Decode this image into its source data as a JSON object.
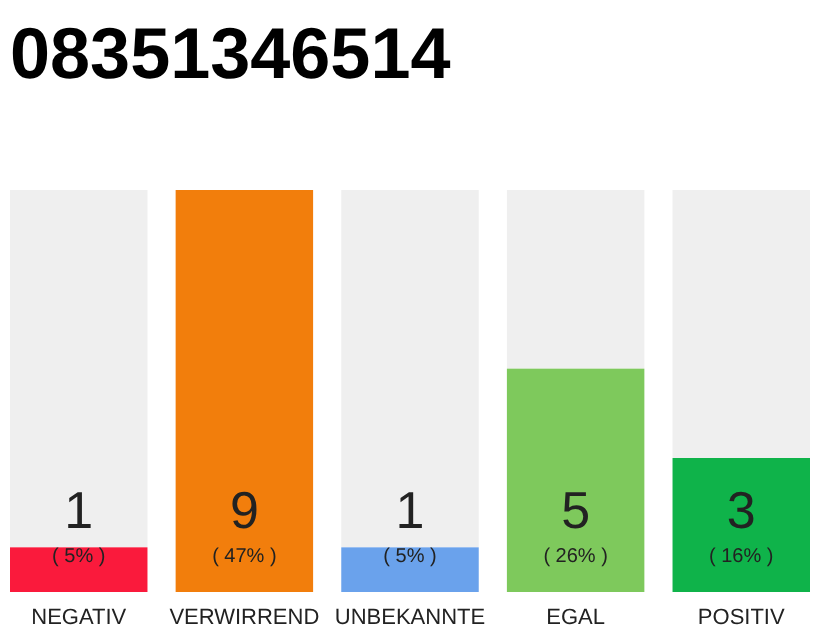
{
  "chart_data": {
    "type": "bar",
    "title": "08351346514",
    "categories": [
      "NEGATIV",
      "VERWIRREND",
      "UNBEKANNTE",
      "EGAL",
      "POSITIV"
    ],
    "values": [
      1,
      9,
      1,
      5,
      3
    ],
    "colors": [
      "#fa1a3c",
      "#f27e0c",
      "#6aa2ec",
      "#7ec95c",
      "#0fb34a"
    ],
    "data_labels": true,
    "annotations": [
      "( 5% )",
      "( 47% )",
      "( 5% )",
      "( 26% )",
      "( 16% )"
    ]
  }
}
